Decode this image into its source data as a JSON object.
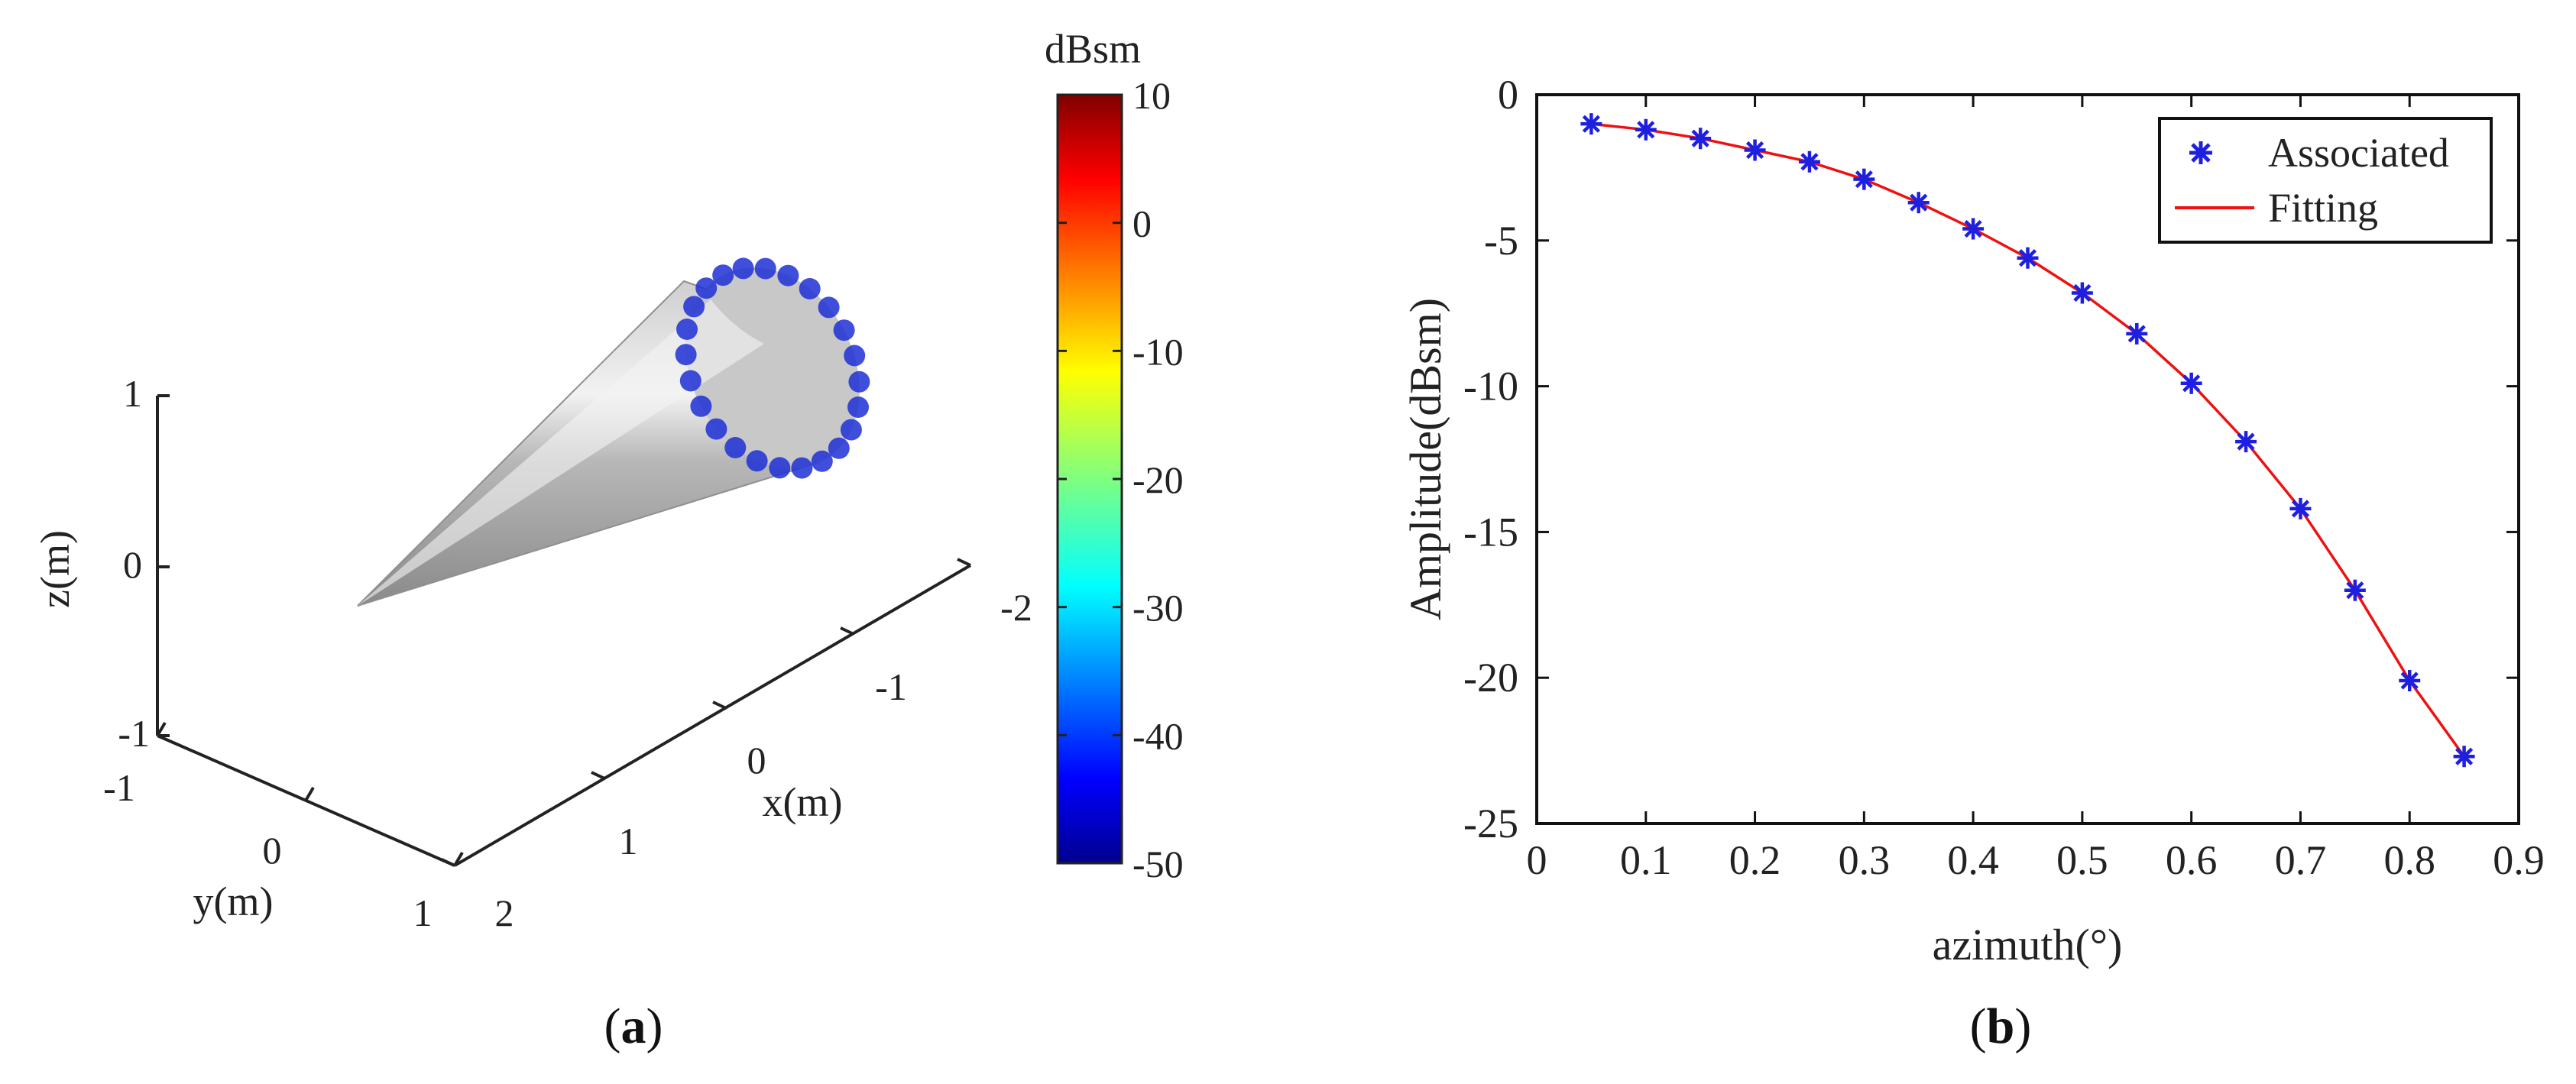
{
  "panels": {
    "a": {
      "caption_letter": "a"
    },
    "b": {
      "caption_letter": "b"
    }
  },
  "chart_data": [
    {
      "type": "scatter",
      "panel": "a",
      "view": "3d",
      "object": "cone",
      "point_color": "#1f2fd6",
      "surface_color": "#a9a9a9",
      "xlabel": "x(m)",
      "ylabel": "y(m)",
      "zlabel": "z(m)",
      "x_ticks": [
        "-2",
        "-1",
        "0",
        "1",
        "2"
      ],
      "y_ticks": [
        "-1",
        "0",
        "1"
      ],
      "z_ticks": [
        "1",
        "0",
        "-1"
      ],
      "scattering_centers": 24,
      "colorbar": {
        "label": "dBsm",
        "range": [
          -50,
          10
        ],
        "ticks": [
          "10",
          "0",
          "-10",
          "-20",
          "-30",
          "-40",
          "-50"
        ],
        "colormap": "jet"
      }
    },
    {
      "type": "line",
      "panel": "b",
      "xlabel": "azimuth(°)",
      "ylabel": "Amplitude(dBsm)",
      "xlim": [
        0,
        0.9
      ],
      "ylim": [
        -25,
        0
      ],
      "x_ticks": [
        "0",
        "0.1",
        "0.2",
        "0.3",
        "0.4",
        "0.5",
        "0.6",
        "0.7",
        "0.8",
        "0.9"
      ],
      "y_ticks": [
        "0",
        "-5",
        "-10",
        "-15",
        "-20",
        "-25"
      ],
      "grid": false,
      "legend_position": "top-right",
      "x": [
        0.05,
        0.1,
        0.15,
        0.2,
        0.25,
        0.3,
        0.35,
        0.4,
        0.45,
        0.5,
        0.55,
        0.6,
        0.65,
        0.7,
        0.75,
        0.8,
        0.85
      ],
      "series": [
        {
          "name": "Associated",
          "style": "marker",
          "color": "#1f1fe0",
          "values": [
            -1.0,
            -1.2,
            -1.5,
            -1.9,
            -2.3,
            -2.9,
            -3.7,
            -4.6,
            -5.6,
            -6.8,
            -8.2,
            -9.9,
            -11.9,
            -14.2,
            -17.0,
            -20.1,
            -22.7
          ]
        },
        {
          "name": "Fitting",
          "style": "line",
          "color": "#ee1111",
          "values": [
            -1.0,
            -1.2,
            -1.5,
            -1.9,
            -2.3,
            -2.9,
            -3.7,
            -4.6,
            -5.6,
            -6.8,
            -8.2,
            -9.9,
            -11.9,
            -14.2,
            -17.0,
            -20.1,
            -22.7
          ]
        }
      ]
    }
  ]
}
